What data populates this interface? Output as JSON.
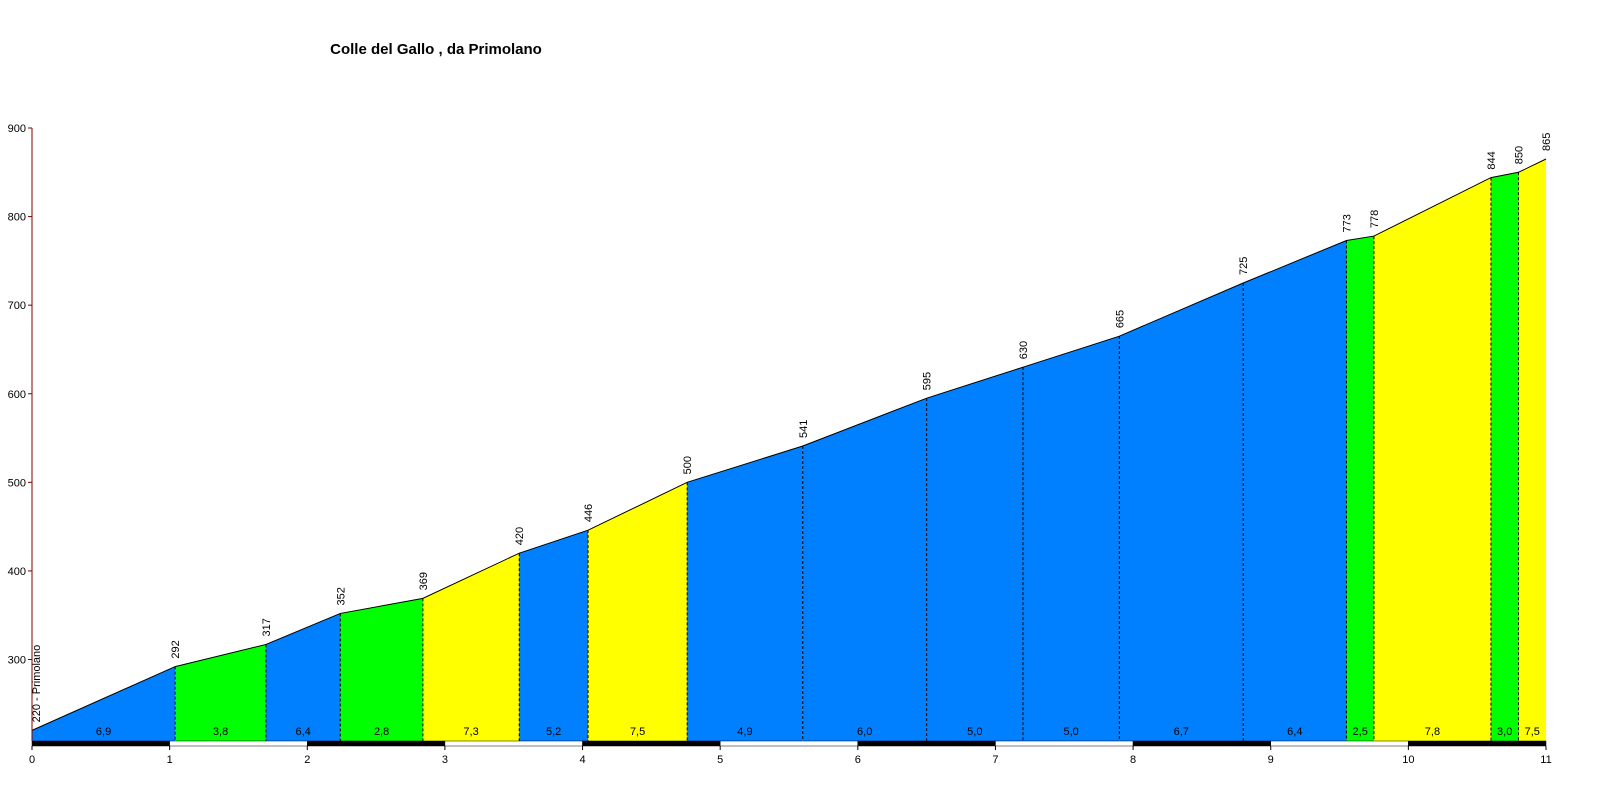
{
  "chart_data": {
    "type": "profile",
    "title": "Colle del Gallo , da Primolano",
    "x": [
      0,
      1.04,
      1.7,
      2.24,
      2.84,
      3.54,
      4.04,
      4.76,
      5.6,
      6.5,
      7.2,
      7.9,
      8.8,
      9.55,
      9.75,
      10.6,
      10.8,
      11
    ],
    "values": [
      220,
      292,
      317,
      352,
      369,
      420,
      446,
      500,
      541,
      595,
      630,
      665,
      725,
      773,
      778,
      844,
      850,
      865
    ],
    "value_labels": [
      "220 - Primolano",
      "292",
      "317",
      "352",
      "369",
      "420",
      "446",
      "500",
      "541",
      "595",
      "630",
      "665",
      "725",
      "773",
      "778",
      "844",
      "850",
      "865"
    ],
    "segment_labels": [
      "6,9",
      "3,8",
      "6,4",
      "2,8",
      "7,3",
      "5,2",
      "7,5",
      "4,9",
      "6,0",
      "5,0",
      "5,0",
      "6,7",
      "6,4",
      "2,5",
      "7,8",
      "3,0",
      "7,5"
    ],
    "segment_colors": [
      "#0080ff",
      "#00ff00",
      "#0080ff",
      "#00ff00",
      "#ffff00",
      "#0080ff",
      "#ffff00",
      "#0080ff",
      "#0080ff",
      "#0080ff",
      "#0080ff",
      "#0080ff",
      "#0080ff",
      "#00ff00",
      "#ffff00",
      "#00ff00",
      "#ffff00"
    ],
    "xlim": [
      0,
      11
    ],
    "xticks": [
      0,
      1,
      2,
      3,
      4,
      5,
      6,
      7,
      8,
      9,
      10,
      11
    ],
    "ylim": [
      208,
      900
    ],
    "yticks": [
      300,
      400,
      500,
      600,
      700,
      800,
      900
    ]
  }
}
